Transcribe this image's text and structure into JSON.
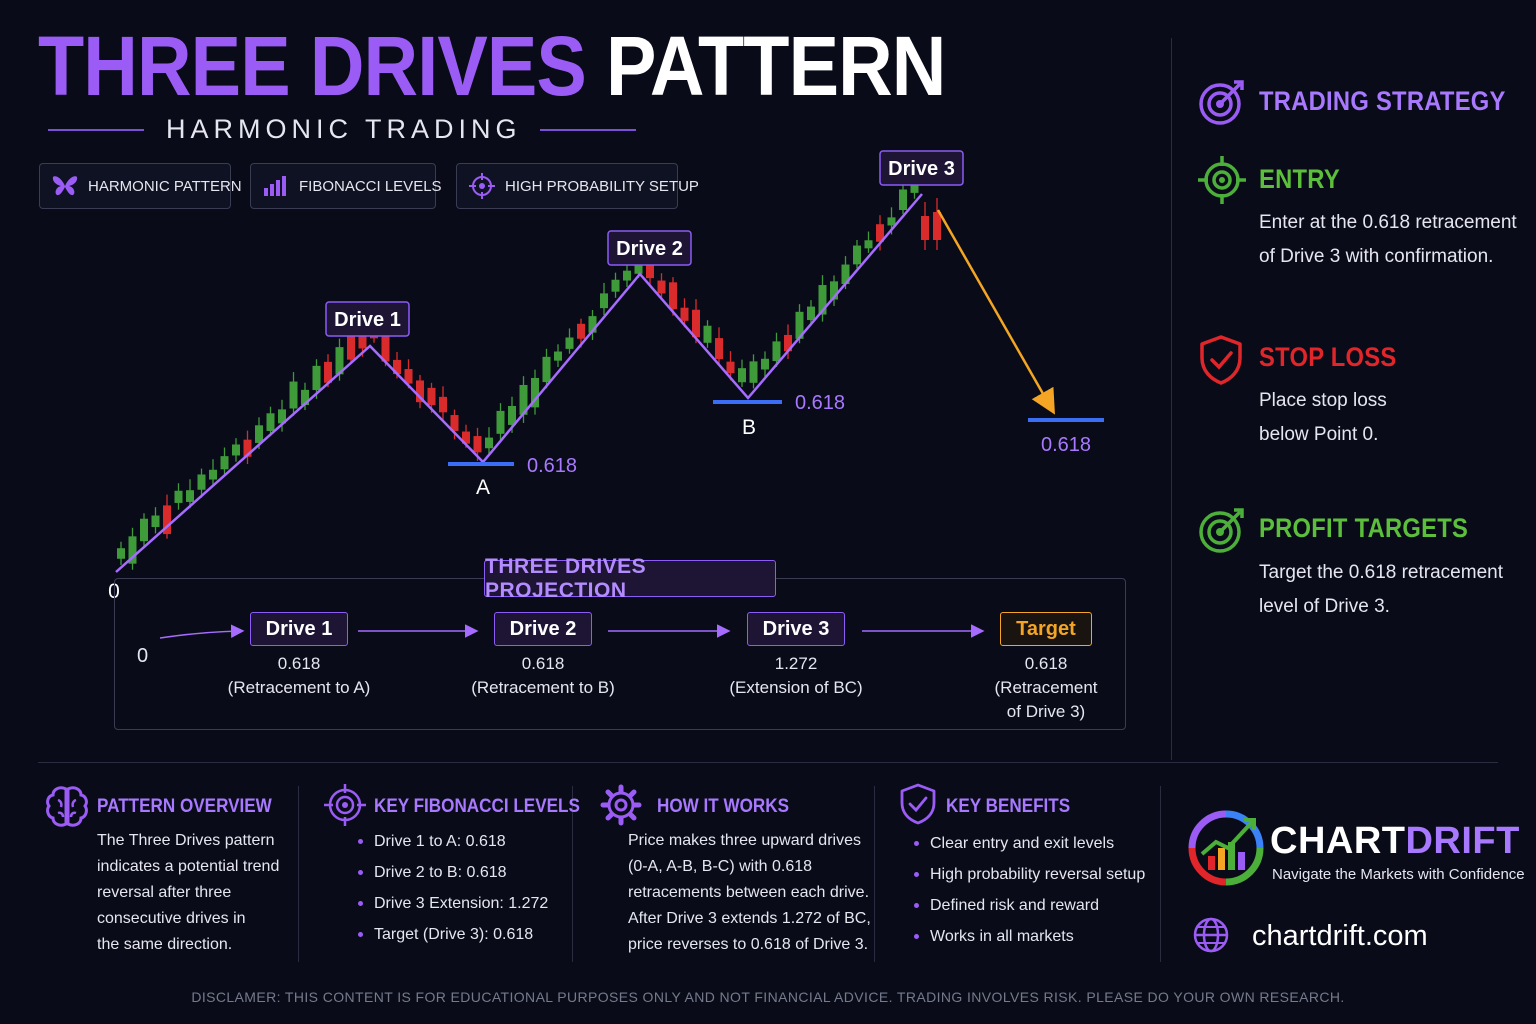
{
  "title": {
    "part1": "THREE DRIVES",
    "part2": "PATTERN"
  },
  "subtitle": "HARMONIC TRADING",
  "tags": [
    {
      "label": "HARMONIC PATTERN",
      "icon": "butterfly-icon"
    },
    {
      "label": "FIBONACCI LEVELS",
      "icon": "bar-chart-icon"
    },
    {
      "label": "HIGH PROBABILITY SETUP",
      "icon": "crosshair-icon"
    }
  ],
  "chart": {
    "drive_labels": [
      "Drive 1",
      "Drive 2",
      "Drive 3"
    ],
    "point_labels": {
      "origin": "0",
      "a": "A",
      "b": "B"
    },
    "fib_levels": {
      "a": "0.618",
      "b": "0.618",
      "target": "0.618"
    },
    "colors": {
      "bull": "#3f9a3a",
      "bear": "#d92b2b",
      "pattern_line": "#a66bff",
      "level_line": "#3b6ef5",
      "target_arrow": "#f5a524"
    }
  },
  "projection": {
    "title": "THREE DRIVES PROJECTION",
    "start": "0",
    "steps": [
      {
        "label": "Drive 1",
        "value": "0.618",
        "note": "(Retracement to A)"
      },
      {
        "label": "Drive 2",
        "value": "0.618",
        "note": "(Retracement to B)"
      },
      {
        "label": "Drive 3",
        "value": "1.272",
        "note": "(Extension of BC)"
      },
      {
        "label": "Target",
        "value": "0.618",
        "note": "(Retracement",
        "note2": "of Drive 3)"
      }
    ]
  },
  "strategy": {
    "title": "TRADING STRATEGY",
    "entry": {
      "title": "ENTRY",
      "lines": [
        "Enter at the 0.618 retracement",
        "of Drive 3 with confirmation."
      ]
    },
    "stop": {
      "title": "STOP LOSS",
      "lines": [
        "Place stop loss",
        "below Point 0."
      ]
    },
    "profit": {
      "title": "PROFIT TARGETS",
      "lines": [
        "Target the 0.618 retracement",
        "level of Drive 3."
      ]
    }
  },
  "bottom": {
    "overview": {
      "title": "PATTERN OVERVIEW",
      "lines": [
        "The Three Drives pattern",
        "indicates a potential trend",
        "reversal after three",
        "consecutive drives in",
        "the same direction."
      ]
    },
    "fib": {
      "title": "KEY FIBONACCI LEVELS",
      "items": [
        "Drive 1 to A: 0.618",
        "Drive 2 to B: 0.618",
        "Drive 3 Extension: 1.272",
        "Target (Drive 3): 0.618"
      ]
    },
    "how": {
      "title": "HOW IT WORKS",
      "lines": [
        "Price makes three upward drives",
        "(0-A, A-B, B-C) with 0.618",
        "retracements between each drive.",
        "After Drive 3 extends 1.272 of BC,",
        "price reverses to 0.618 of Drive 3."
      ]
    },
    "benefits": {
      "title": "KEY BENEFITS",
      "items": [
        "Clear entry and exit levels",
        "High probability reversal setup",
        "Defined risk and reward",
        "Works in all markets"
      ]
    }
  },
  "brand": {
    "name1": "CHART",
    "name2": "DRIFT",
    "tagline": "Navigate the Markets with Confidence",
    "site": "chartdrift.com"
  },
  "disclaimer": "DISCLAMER: THIS CONTENT IS FOR EDUCATIONAL PURPOSES ONLY AND NOT FINANCIAL ADVICE. TRADING INVOLVES RISK. PLEASE DO YOUR OWN RESEARCH."
}
